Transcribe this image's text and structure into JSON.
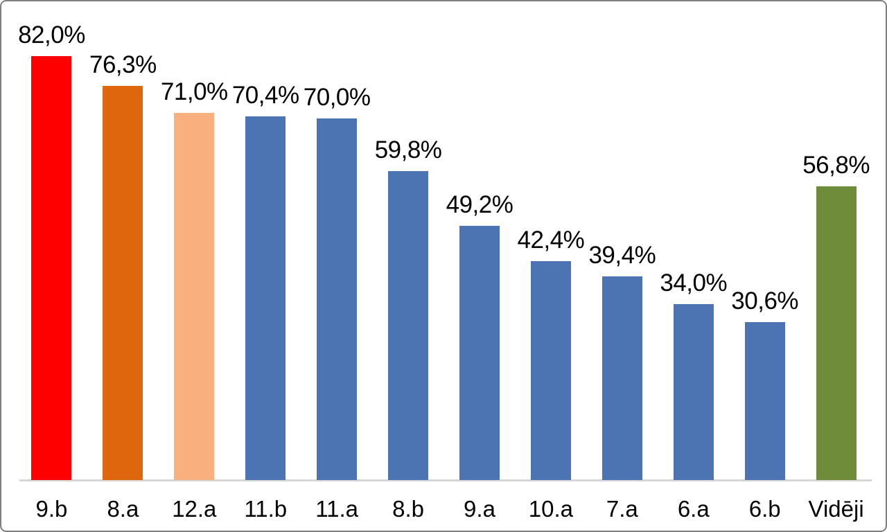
{
  "chart_data": {
    "type": "bar",
    "title": "",
    "xlabel": "",
    "ylabel": "",
    "categories": [
      "9.b",
      "8.a",
      "12.a",
      "11.b",
      "11.a",
      "8.b",
      "9.a",
      "10.a",
      "7.a",
      "6.a",
      "6.b",
      "Vidēji"
    ],
    "values": [
      82.0,
      76.3,
      71.0,
      70.4,
      70.0,
      59.8,
      49.2,
      42.4,
      39.4,
      34.0,
      30.6,
      56.8
    ],
    "value_labels": [
      "82,0%",
      "76,3%",
      "71,0%",
      "70,4%",
      "70,0%",
      "59,8%",
      "49,2%",
      "42,4%",
      "39,4%",
      "34,0%",
      "30,6%",
      "56,8%"
    ],
    "bar_colors": [
      "#ff0000",
      "#de660d",
      "#f8b17e",
      "#4c74b2",
      "#4c74b2",
      "#4c74b2",
      "#4c74b2",
      "#4c74b2",
      "#4c74b2",
      "#4c74b2",
      "#4c74b2",
      "#6f8c3b"
    ],
    "palette": {
      "highlight_red": "#ff0000",
      "highlight_orange": "#de660d",
      "highlight_peach": "#f8b17e",
      "default_blue": "#4c74b2",
      "average_green": "#6f8c3b",
      "axis_line": "#d6d6d6",
      "frame_border": "#7f7f7f",
      "label_text": "#000000"
    },
    "decimal_separator": ",",
    "unit": "%",
    "ylim": [
      0,
      90
    ],
    "gridlines": false,
    "legend": false,
    "data_labels": "outside-end",
    "y_axis_visible": false,
    "x_axis_visible": true
  }
}
